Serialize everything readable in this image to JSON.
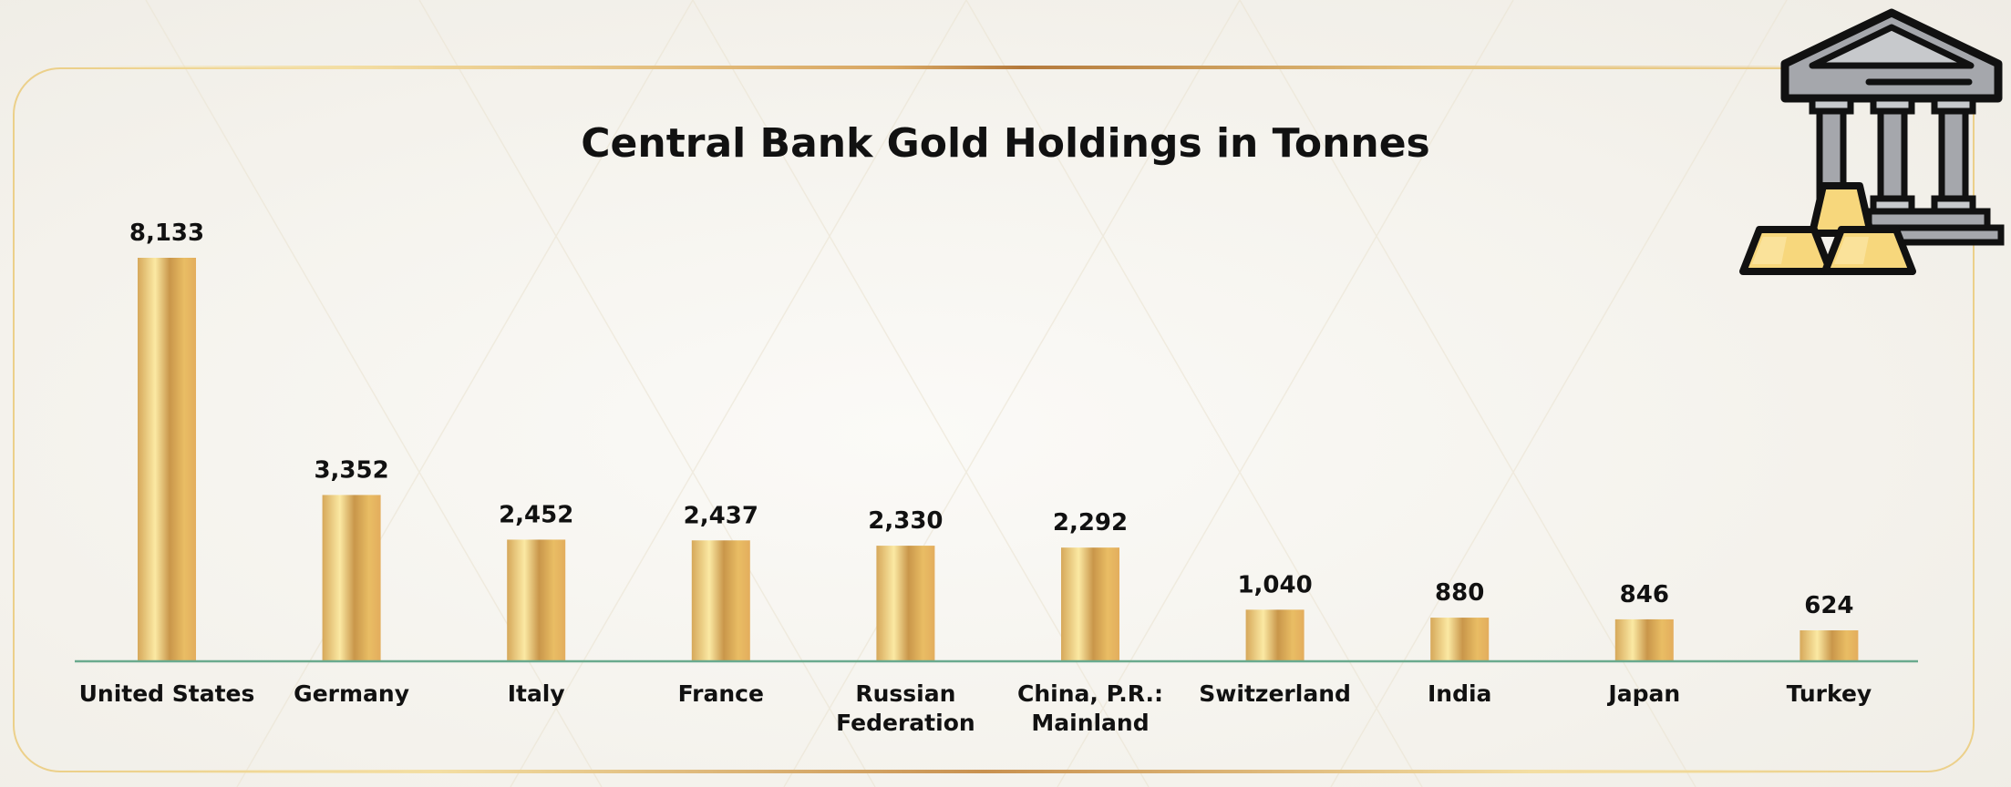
{
  "chart_data": {
    "type": "bar",
    "title": "Central Bank Gold Holdings in Tonnes",
    "xlabel": "",
    "ylabel": "",
    "categories": [
      [
        "United States"
      ],
      [
        "Germany"
      ],
      [
        "Italy"
      ],
      [
        "France"
      ],
      [
        "Russian",
        "Federation"
      ],
      [
        "China, P.R.:",
        "Mainland"
      ],
      [
        "Switzerland"
      ],
      [
        "India"
      ],
      [
        "Japan"
      ],
      [
        "Turkey"
      ]
    ],
    "values": [
      8133,
      3352,
      2452,
      2437,
      2330,
      2292,
      1040,
      880,
      846,
      624
    ],
    "value_labels": [
      "8,133",
      "3,352",
      "2,452",
      "2,437",
      "2,330",
      "2,292",
      "1,040",
      "880",
      "846",
      "624"
    ],
    "ylim": [
      0,
      8133
    ],
    "grid": false,
    "legend": "none"
  },
  "colors": {
    "bar_light": "#fbe9a3",
    "bar_mid": "#e9bd64",
    "bar_dark": "#c9964a",
    "baseline": "#6aaa8e",
    "frame": "#ecd08a",
    "text": "#111111"
  },
  "decoration": {
    "icon": "bank-with-gold-bars-icon"
  }
}
